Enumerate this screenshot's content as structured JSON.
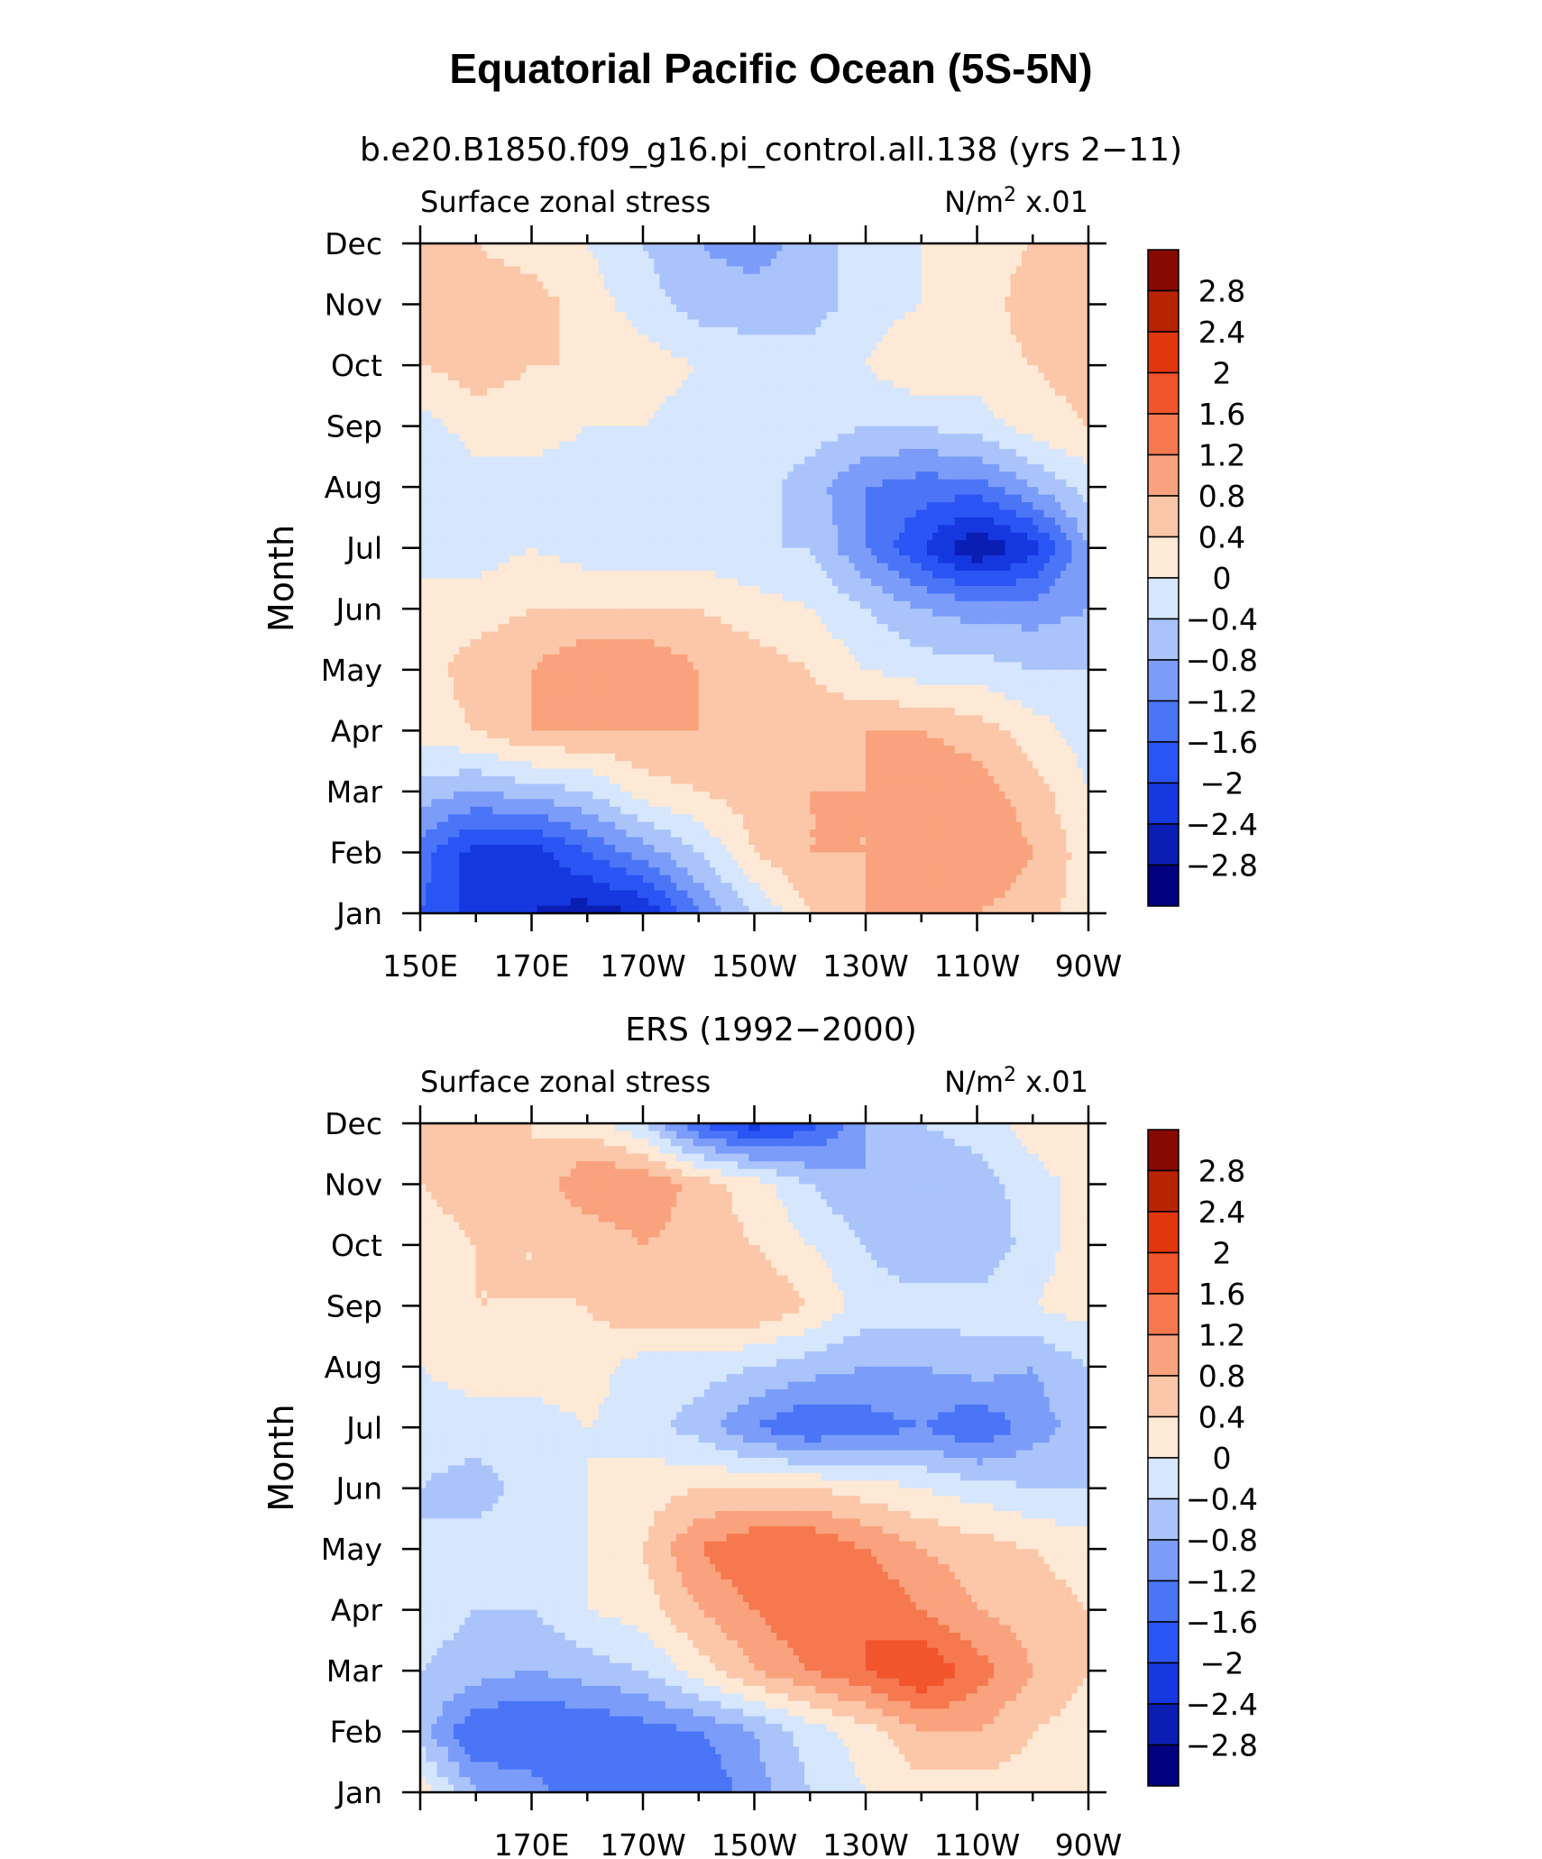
{
  "figure": {
    "title": "Equatorial Pacific Ocean (5S-5N)"
  },
  "chart_data": [
    {
      "type": "heatmap",
      "title": "b.e20.B1850.f09_g16.pi_control.all.138 (yrs 2−11)",
      "left_label": "Surface zonal stress",
      "units_base": "N/m",
      "units_exp": "2",
      "units_scale": " x.01",
      "ylabel": "Month",
      "x_ticks": [
        "150E",
        "170E",
        "170W",
        "150W",
        "130W",
        "110W",
        "90W"
      ],
      "y_ticks": [
        "Jan",
        "Feb",
        "Mar",
        "Apr",
        "May",
        "Jun",
        "Jul",
        "Aug",
        "Sep",
        "Oct",
        "Nov",
        "Dec"
      ],
      "xlim_deg_east": [
        150,
        270
      ],
      "colorbar_labels": [
        "2.8",
        "2.4",
        "2",
        "1.6",
        "1.2",
        "0.8",
        "0.4",
        "0",
        "−0.4",
        "−0.8",
        "−1.2",
        "−1.6",
        "−2",
        "−2.4",
        "−2.8"
      ],
      "levels": [
        -3.2,
        -2.8,
        -2.4,
        -2.0,
        -1.6,
        -1.2,
        -0.8,
        -0.4,
        0,
        0.4,
        0.8,
        1.2,
        1.6,
        2.0,
        2.4,
        2.8,
        3.2
      ],
      "colors": [
        "#000080",
        "#0a1eb4",
        "#1538e0",
        "#2a55f5",
        "#4a75f7",
        "#7b9cf9",
        "#aac4fb",
        "#d5e6fd",
        "#fde9d6",
        "#fcc6a8",
        "#f9a27d",
        "#f5784f",
        "#f2542c",
        "#e2360c",
        "#b82302",
        "#860a02"
      ],
      "grid": {
        "months": [
          "Jan",
          "Feb",
          "Mar",
          "Apr",
          "May",
          "Jun",
          "Jul",
          "Aug",
          "Sep",
          "Oct",
          "Nov",
          "Dec"
        ],
        "lons": [
          "150E",
          "160E",
          "170E",
          "180",
          "170W",
          "160W",
          "150W",
          "140W",
          "130W",
          "120W",
          "110W",
          "100W",
          "90W"
        ],
        "values": [
          [
            -1.6,
            -2.2,
            -2.4,
            -2.6,
            -2.4,
            -1.2,
            -0.4,
            0.4,
            0.8,
            0.8,
            0.8,
            0.6,
            0.2
          ],
          [
            -1.4,
            -2.2,
            -2.2,
            -1.6,
            -1.0,
            -0.4,
            0.4,
            0.8,
            0.8,
            1.2,
            1.2,
            0.8,
            0.2
          ],
          [
            -0.6,
            -0.8,
            -0.6,
            -0.4,
            0.2,
            0.4,
            0.6,
            0.8,
            0.8,
            1.2,
            1.0,
            0.6,
            0.0
          ],
          [
            0.2,
            0.4,
            0.8,
            0.8,
            0.8,
            0.8,
            0.6,
            0.6,
            0.8,
            0.8,
            0.6,
            0.2,
            -0.2
          ],
          [
            0.2,
            0.6,
            0.8,
            1.2,
            1.2,
            0.8,
            0.6,
            0.4,
            0.0,
            -0.2,
            -0.2,
            -0.4,
            -0.4
          ],
          [
            0.2,
            0.2,
            0.4,
            0.4,
            0.4,
            0.4,
            0.2,
            0.0,
            -0.4,
            -0.8,
            -1.0,
            -1.0,
            -0.8
          ],
          [
            -0.2,
            -0.2,
            0.0,
            -0.2,
            -0.2,
            -0.2,
            -0.4,
            -0.4,
            -1.2,
            -2.0,
            -2.8,
            -2.2,
            -0.8
          ],
          [
            -0.4,
            -0.2,
            -0.2,
            -0.2,
            -0.4,
            -0.2,
            -0.2,
            -0.6,
            -1.2,
            -1.4,
            -1.4,
            -0.8,
            -0.2
          ],
          [
            -0.2,
            0.2,
            0.2,
            0.0,
            0.0,
            -0.2,
            -0.2,
            -0.2,
            -0.4,
            -0.4,
            -0.2,
            0.2,
            0.4
          ],
          [
            0.4,
            0.6,
            0.4,
            0.4,
            0.2,
            0.0,
            -0.2,
            -0.2,
            0.0,
            0.4,
            0.2,
            0.4,
            0.6
          ],
          [
            0.8,
            0.6,
            0.6,
            0.2,
            -0.2,
            -0.6,
            -0.6,
            -0.6,
            -0.2,
            0.0,
            0.2,
            0.6,
            0.8
          ],
          [
            0.4,
            0.4,
            0.2,
            0.0,
            -0.4,
            -0.8,
            -1.0,
            -0.6,
            -0.2,
            0.0,
            0.2,
            0.4,
            0.4
          ]
        ]
      }
    },
    {
      "type": "heatmap",
      "title": "ERS (1992−2000)",
      "left_label": "Surface zonal stress",
      "units_base": "N/m",
      "units_exp": "2",
      "units_scale": " x.01",
      "ylabel": "Month",
      "x_ticks": [
        "170E",
        "170W",
        "150W",
        "130W",
        "110W",
        "90W"
      ],
      "y_ticks": [
        "Jan",
        "Feb",
        "Mar",
        "Apr",
        "May",
        "Jun",
        "Jul",
        "Aug",
        "Sep",
        "Oct",
        "Nov",
        "Dec"
      ],
      "xlim_deg_east": [
        150,
        270
      ],
      "colorbar_labels": [
        "2.8",
        "2.4",
        "2",
        "1.6",
        "1.2",
        "0.8",
        "0.4",
        "0",
        "−0.4",
        "−0.8",
        "−1.2",
        "−1.6",
        "−2",
        "−2.4",
        "−2.8"
      ],
      "levels": [
        -3.2,
        -2.8,
        -2.4,
        -2.0,
        -1.6,
        -1.2,
        -0.8,
        -0.4,
        0,
        0.4,
        0.8,
        1.2,
        1.6,
        2.0,
        2.4,
        2.8,
        3.2
      ],
      "colors": [
        "#000080",
        "#0a1eb4",
        "#1538e0",
        "#2a55f5",
        "#4a75f7",
        "#7b9cf9",
        "#aac4fb",
        "#d5e6fd",
        "#fde9d6",
        "#fcc6a8",
        "#f9a27d",
        "#f5784f",
        "#f2542c",
        "#e2360c",
        "#b82302",
        "#860a02"
      ],
      "grid": {
        "months": [
          "Jan",
          "Feb",
          "Mar",
          "Apr",
          "May",
          "Jun",
          "Jul",
          "Aug",
          "Sep",
          "Oct",
          "Nov",
          "Dec"
        ],
        "lons": [
          "150E",
          "160E",
          "170E",
          "180",
          "170W",
          "160W",
          "150W",
          "140W",
          "130W",
          "120W",
          "110W",
          "100W",
          "90W"
        ],
        "values": [
          [
            0.2,
            -0.8,
            -1.0,
            -1.6,
            -1.6,
            -1.6,
            -1.0,
            -0.4,
            0.0,
            0.2,
            0.2,
            0.2,
            0.2
          ],
          [
            -0.6,
            -1.6,
            -1.6,
            -1.6,
            -1.4,
            -1.2,
            -0.8,
            -0.2,
            0.2,
            0.8,
            0.8,
            0.4,
            0.2
          ],
          [
            -0.4,
            -0.6,
            -0.8,
            -0.6,
            -0.4,
            0.2,
            0.8,
            1.2,
            1.6,
            2.0,
            1.4,
            0.8,
            0.4
          ],
          [
            -0.2,
            -0.4,
            -0.4,
            0.0,
            0.2,
            0.8,
            1.2,
            1.6,
            1.6,
            1.2,
            0.8,
            0.6,
            0.4
          ],
          [
            -0.4,
            -0.2,
            -0.2,
            0.0,
            0.4,
            1.2,
            1.6,
            1.6,
            1.2,
            0.8,
            0.6,
            0.4,
            0.2
          ],
          [
            -0.4,
            -0.6,
            -0.2,
            0.0,
            0.2,
            0.4,
            0.4,
            0.4,
            0.2,
            0.0,
            -0.2,
            -0.4,
            -0.4
          ],
          [
            -0.2,
            -0.2,
            -0.2,
            0.0,
            -0.2,
            -0.6,
            -1.2,
            -1.6,
            -1.4,
            -1.2,
            -1.6,
            -1.0,
            -0.6
          ],
          [
            0.0,
            0.2,
            0.2,
            0.2,
            -0.2,
            -0.2,
            -0.4,
            -0.6,
            -0.8,
            -0.8,
            -0.6,
            -0.8,
            -0.4
          ],
          [
            0.2,
            0.4,
            0.4,
            0.4,
            0.8,
            0.8,
            0.8,
            0.4,
            -0.2,
            -0.2,
            -0.2,
            0.0,
            0.2
          ],
          [
            0.2,
            0.4,
            0.4,
            0.4,
            0.8,
            0.6,
            0.4,
            0.0,
            -0.4,
            -0.8,
            -0.8,
            -0.2,
            0.2
          ],
          [
            0.4,
            0.6,
            0.4,
            1.2,
            1.2,
            0.6,
            0.2,
            -0.4,
            -0.8,
            -0.8,
            -0.6,
            -0.2,
            0.2
          ],
          [
            0.6,
            0.6,
            0.4,
            0.2,
            -0.4,
            -1.6,
            -2.2,
            -1.8,
            -0.8,
            -0.4,
            -0.2,
            0.2,
            0.4
          ]
        ]
      }
    }
  ]
}
